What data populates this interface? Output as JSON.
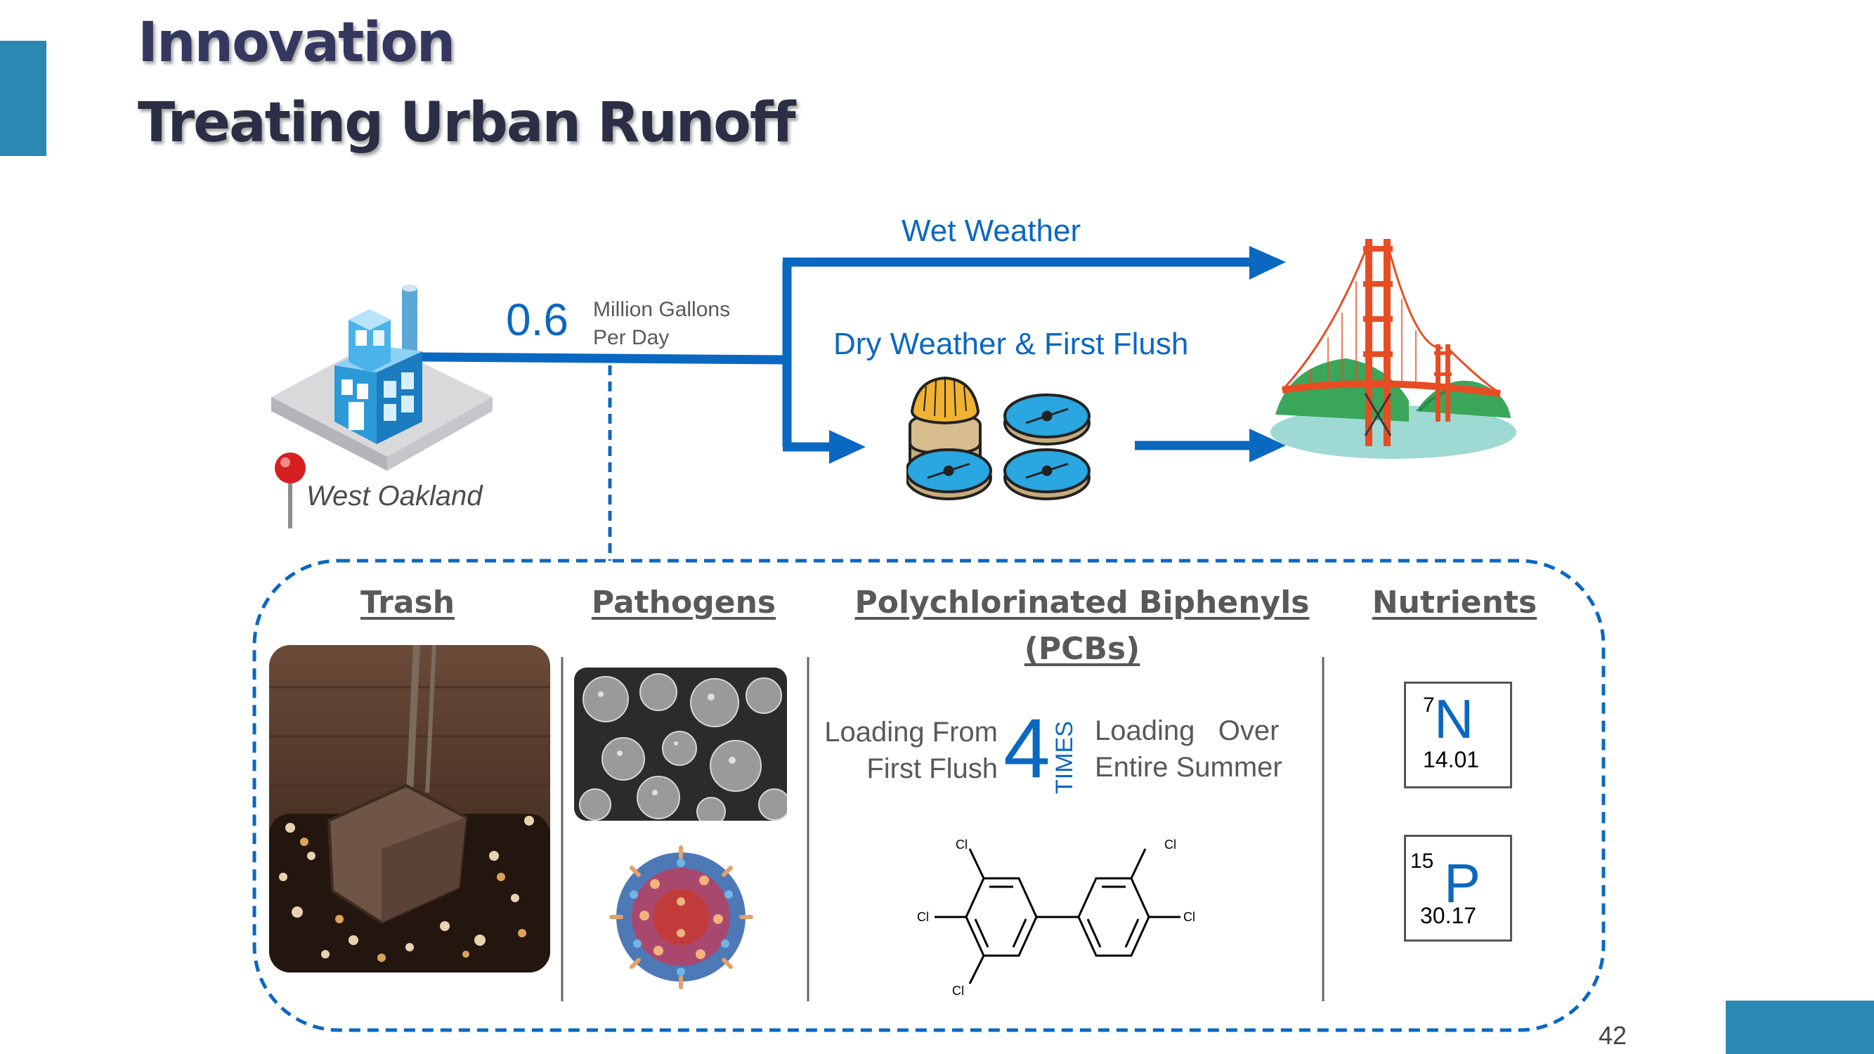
{
  "slide": {
    "title_line1": "Innovation",
    "title_line2": "Treating Urban Runoff",
    "page_number": "42",
    "accent_color": "#2a88b3"
  },
  "flow": {
    "flow_value": "0.6",
    "flow_unit_line1": "Million Gallons",
    "flow_unit_line2": "Per Day",
    "location": "West Oakland",
    "wet_weather_label": "Wet Weather",
    "dry_weather_label": "Dry Weather & First Flush",
    "line_color": "#0b68c1"
  },
  "pollutants": {
    "trash": {
      "heading": "Trash"
    },
    "pathogens": {
      "heading": "Pathogens"
    },
    "pcbs": {
      "heading_line1": "Polychlorinated Biphenyls",
      "heading_line2": "(PCBs)",
      "left_text_line1": "Loading From",
      "left_text_line2": "First Flush",
      "multiplier": "4",
      "multiplier_unit": "TIMES",
      "right_text_line1": "Loading   Over",
      "right_text_line2": "Entire Summer",
      "chlorine_label": "Cl"
    },
    "nutrients": {
      "heading": "Nutrients",
      "elements": [
        {
          "number": "7",
          "symbol": "N",
          "mass": "14.01"
        },
        {
          "number": "15",
          "symbol": "P",
          "mass": "30.17"
        }
      ]
    }
  }
}
